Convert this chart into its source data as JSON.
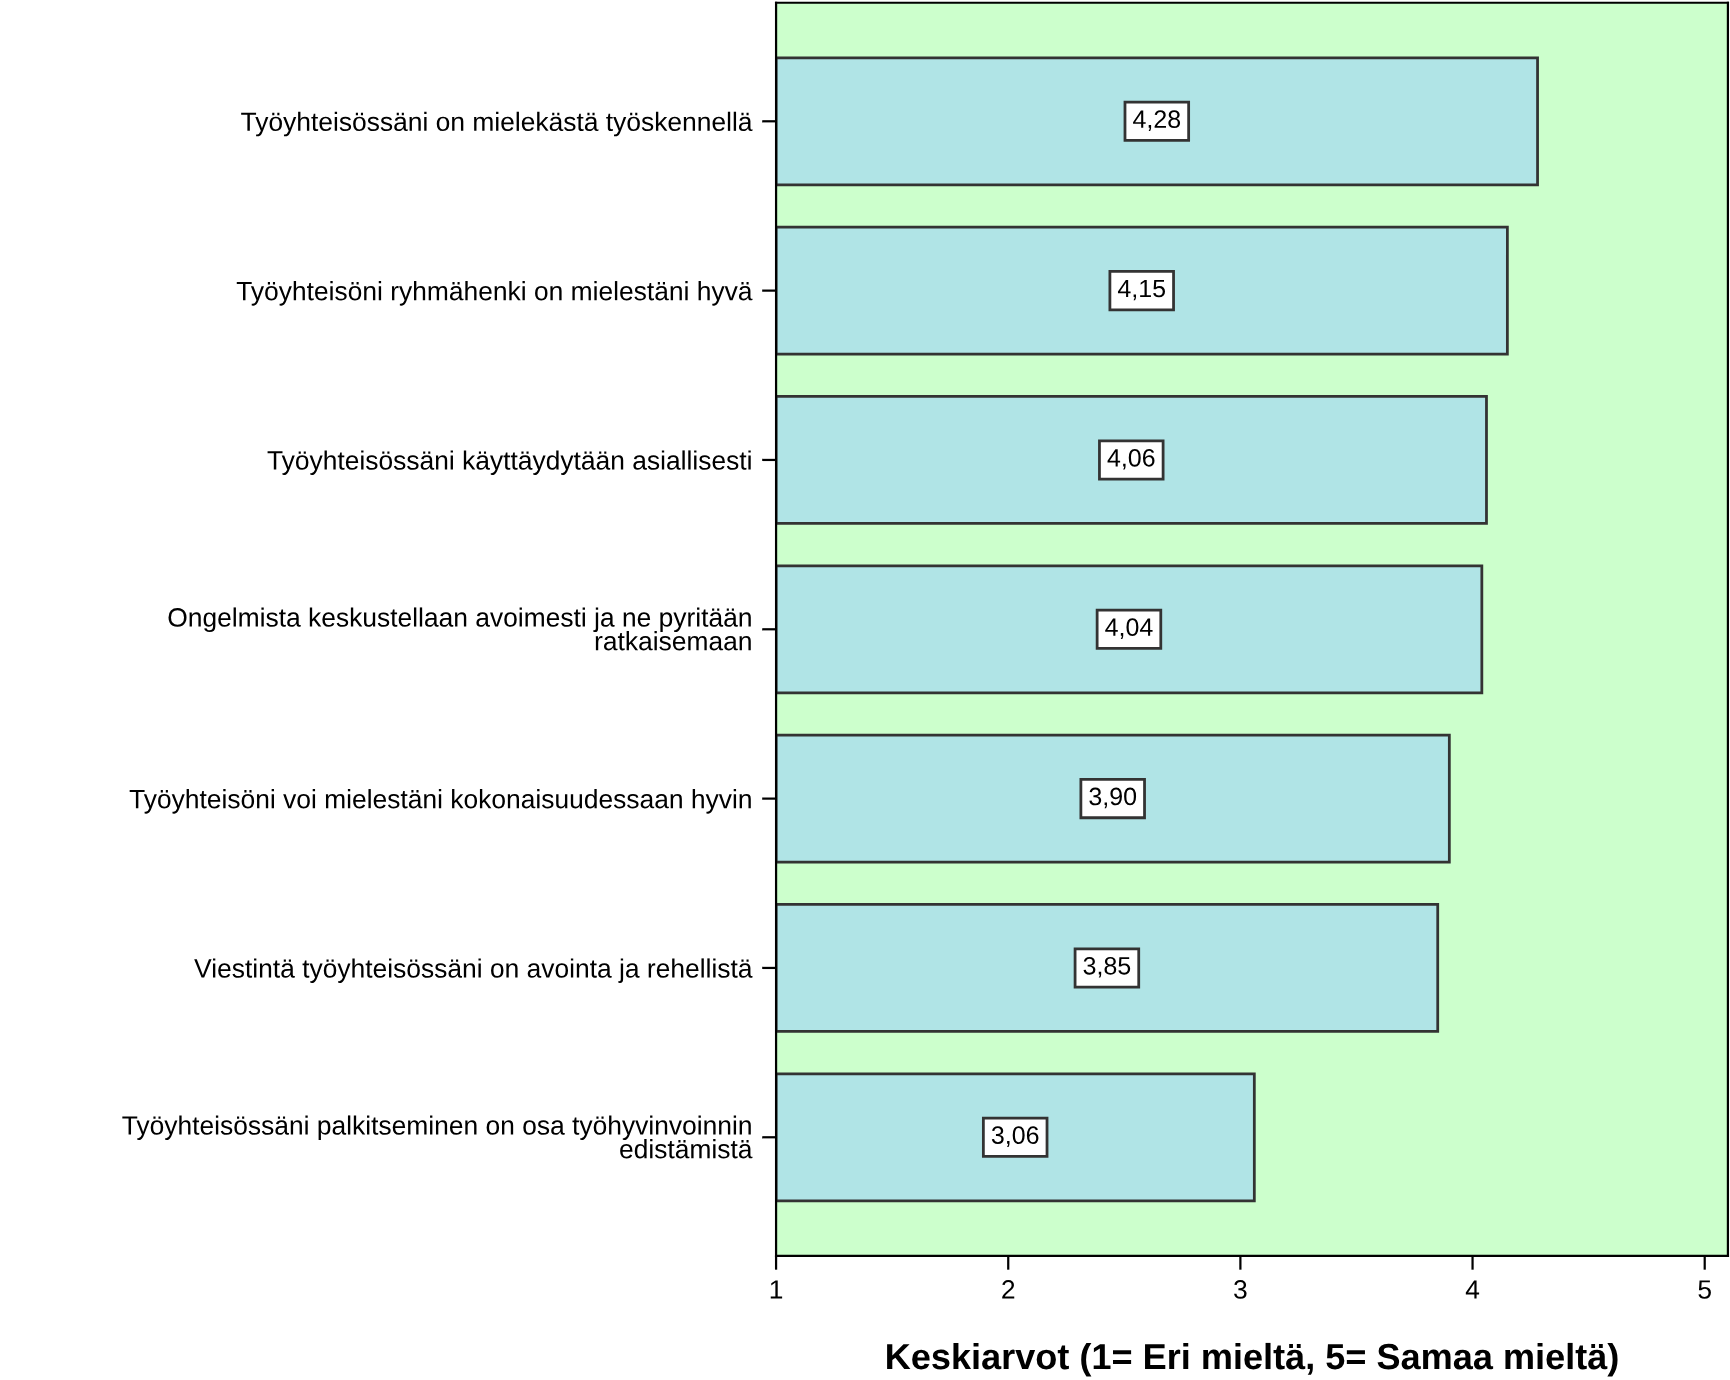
{
  "chart_data": {
    "type": "bar",
    "orientation": "horizontal",
    "xlabel": "Keskiarvot (1= Eri mieltä, 5= Samaa mieltä)",
    "categories": [
      "Työyhteisössäni on mielekästä työskennellä",
      "Työyhteisöni ryhmähenki on mielestäni hyvä",
      "Työyhteisössäni käyttäydytään asiallisesti",
      "Ongelmista keskustellaan avoimesti ja ne pyritään\nratkaisemaan",
      "Työyhteisöni voi mielestäni kokonaisuudessaan hyvin",
      "Viestintä työyhteisössäni on avointa ja rehellistä",
      "Työyhteisössäni palkitseminen on osa työhyvinvoinnin\nedistämistä"
    ],
    "values": [
      4.28,
      4.15,
      4.06,
      4.04,
      3.9,
      3.85,
      3.06
    ],
    "value_labels": [
      "4,28",
      "4,15",
      "4,06",
      "4,04",
      "3,90",
      "3,85",
      "3,06"
    ],
    "color": "#b0e4e6",
    "xlim": [
      1,
      5.1
    ],
    "xticks": [
      1,
      2,
      3,
      4,
      5
    ],
    "grid": false,
    "legend": false
  }
}
